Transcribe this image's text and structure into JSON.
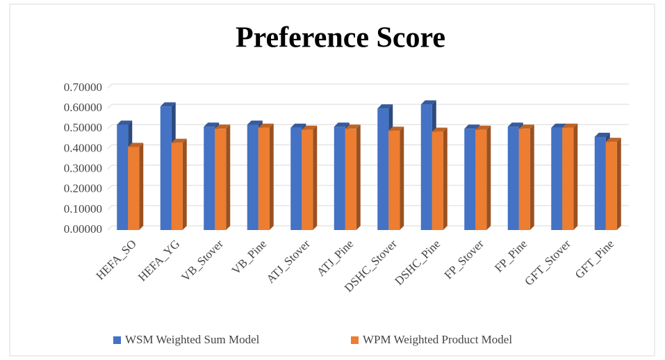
{
  "chart_data": {
    "type": "bar3d",
    "title": "Preference Score",
    "categories": [
      "HEFA_SO",
      "HEFA_YG",
      "VB_Stover",
      "VB_Pine",
      "ATJ_Stover",
      "ATJ_Pine",
      "DSHC_Stover",
      "DSHC_Pine",
      "FP_Stover",
      "FP_Pine",
      "GFT_Stover",
      "GFT_Pine"
    ],
    "series": [
      {
        "name": "WSM Weighted Sum Model",
        "color": "#4472c4",
        "values": [
          0.52,
          0.61,
          0.51,
          0.52,
          0.505,
          0.51,
          0.6,
          0.62,
          0.5,
          0.51,
          0.505,
          0.46
        ]
      },
      {
        "name": "WPM Weighted Product Model",
        "color": "#ed7d31",
        "values": [
          0.41,
          0.43,
          0.5,
          0.505,
          0.495,
          0.5,
          0.49,
          0.485,
          0.495,
          0.5,
          0.505,
          0.435
        ]
      }
    ],
    "ylim": [
      0,
      0.7
    ],
    "yticks": [
      {
        "value": 0,
        "label": "0.00000"
      },
      {
        "value": 0.1,
        "label": "0.10000"
      },
      {
        "value": 0.2,
        "label": "0.20000"
      },
      {
        "value": 0.3,
        "label": "0.30000"
      },
      {
        "value": 0.4,
        "label": "0.40000"
      },
      {
        "value": 0.5,
        "label": "0.50000"
      },
      {
        "value": 0.6,
        "label": "0.60000"
      },
      {
        "value": 0.7,
        "label": "0.70000"
      }
    ],
    "grid": true,
    "legend": "bottom"
  }
}
